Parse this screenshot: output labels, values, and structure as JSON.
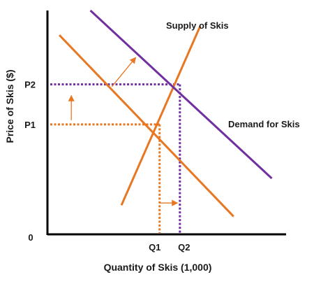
{
  "chart_data": {
    "type": "line",
    "title": "",
    "xlabel": "Quantity of Skis (1,000)",
    "ylabel": "Price of Skis ($)",
    "origin_label": "0",
    "x_ticks": [
      "Q1",
      "Q2"
    ],
    "y_ticks": [
      "P1",
      "P2"
    ],
    "grid": false,
    "colors": {
      "supply": "#E87722",
      "demand_initial": "#E87722",
      "demand_new": "#7030A0",
      "axis": "#000000"
    },
    "curves": [
      {
        "role": "supply",
        "label": "Supply of Skis",
        "x": [
          0.31,
          0.64
        ],
        "y": [
          0.13,
          0.93
        ]
      },
      {
        "role": "demand_initial",
        "label": "",
        "x": [
          0.05,
          0.78
        ],
        "y": [
          0.89,
          0.08
        ]
      },
      {
        "role": "demand_new",
        "label": "Demand for Skis",
        "x": [
          0.18,
          0.94
        ],
        "y": [
          1.0,
          0.25
        ]
      }
    ],
    "equilibria": [
      {
        "name": "initial",
        "x_label": "Q1",
        "y_label": "P1",
        "x": 0.47,
        "y": 0.491,
        "color": "#E87722"
      },
      {
        "name": "new",
        "x_label": "Q2",
        "y_label": "P2",
        "x": 0.555,
        "y": 0.67,
        "color": "#7030A0"
      }
    ],
    "annotations": [
      {
        "type": "shift-arrow",
        "from": [
          0.27,
          0.66
        ],
        "to": [
          0.37,
          0.79
        ]
      },
      {
        "type": "shift-arrow",
        "from": [
          0.1,
          0.51
        ],
        "to": [
          0.1,
          0.62
        ]
      },
      {
        "type": "shift-arrow",
        "from": [
          0.47,
          0.14
        ],
        "to": [
          0.545,
          0.14
        ]
      }
    ]
  }
}
